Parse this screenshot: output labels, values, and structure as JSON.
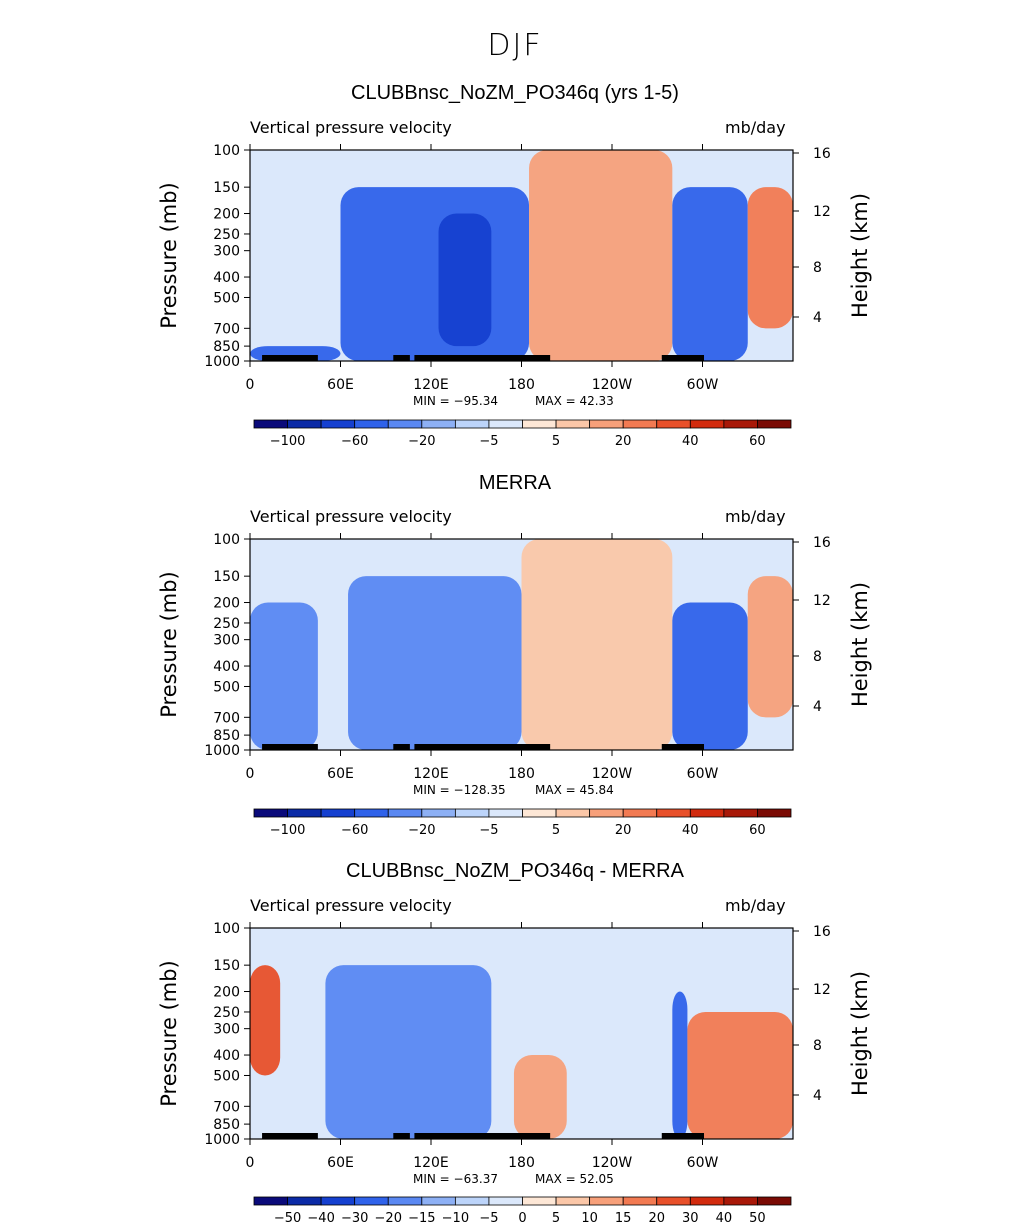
{
  "suptitle": "DJF",
  "chart_data": [
    {
      "type": "heatmap",
      "title": "CLUBBnsc_NoZM_PO346q (yrs 1-5)",
      "left_label": "Vertical pressure velocity",
      "right_label": "mb/day",
      "ylabel": "Pressure (mb)",
      "ylabel_right": "Height (km)",
      "y_ticks": [
        "100",
        "150",
        "200",
        "250",
        "300",
        "400",
        "500",
        "700",
        "850",
        "1000"
      ],
      "y_right_ticks": [
        "16",
        "12",
        "8",
        "4"
      ],
      "x_ticks": [
        "0",
        "60E",
        "120E",
        "180",
        "120W",
        "60W"
      ],
      "min_label": "MIN = −95.34",
      "max_label": "MAX =  42.33",
      "colorbar_ticks": [
        "−100",
        "−60",
        "−20",
        "−5",
        "5",
        "20",
        "40",
        "60"
      ],
      "colorbar_colors": [
        "#0a0a7a",
        "#0a2aa6",
        "#1540d0",
        "#2f62ea",
        "#5a88f2",
        "#8db0f5",
        "#bcd4fa",
        "#dbe8fb",
        "#fde7d6",
        "#fbc7a8",
        "#f7a07a",
        "#f27a52",
        "#e8502a",
        "#d22b0e",
        "#a81808",
        "#7a0a04"
      ],
      "fields": [
        {
          "x0": 0,
          "x1": 60,
          "p0": 850,
          "p1": 1000,
          "color": "#2f62ea"
        },
        {
          "x0": 60,
          "x1": 185,
          "p0": 150,
          "p1": 1000,
          "color": "#2f62ea"
        },
        {
          "x0": 125,
          "x1": 160,
          "p0": 200,
          "p1": 850,
          "color": "#1540d0"
        },
        {
          "x0": 185,
          "x1": 280,
          "p0": 100,
          "p1": 1000,
          "color": "#f7a07a"
        },
        {
          "x0": 280,
          "x1": 330,
          "p0": 150,
          "p1": 1000,
          "color": "#2f62ea"
        },
        {
          "x0": 330,
          "x1": 360,
          "p0": 150,
          "p1": 700,
          "color": "#f27a52"
        }
      ]
    },
    {
      "type": "heatmap",
      "title": "MERRA",
      "left_label": "Vertical pressure velocity",
      "right_label": "mb/day",
      "ylabel": "Pressure (mb)",
      "ylabel_right": "Height (km)",
      "y_ticks": [
        "100",
        "150",
        "200",
        "250",
        "300",
        "400",
        "500",
        "700",
        "850",
        "1000"
      ],
      "y_right_ticks": [
        "16",
        "12",
        "8",
        "4"
      ],
      "x_ticks": [
        "0",
        "60E",
        "120E",
        "180",
        "120W",
        "60W"
      ],
      "min_label": "MIN = −128.35",
      "max_label": "MAX =  45.84",
      "colorbar_ticks": [
        "−100",
        "−60",
        "−20",
        "−5",
        "5",
        "20",
        "40",
        "60"
      ],
      "colorbar_colors": [
        "#0a0a7a",
        "#0a2aa6",
        "#1540d0",
        "#2f62ea",
        "#5a88f2",
        "#8db0f5",
        "#bcd4fa",
        "#dbe8fb",
        "#fde7d6",
        "#fbc7a8",
        "#f7a07a",
        "#f27a52",
        "#e8502a",
        "#d22b0e",
        "#a81808",
        "#7a0a04"
      ],
      "fields": [
        {
          "x0": 0,
          "x1": 45,
          "p0": 200,
          "p1": 1000,
          "color": "#5a88f2"
        },
        {
          "x0": 65,
          "x1": 180,
          "p0": 150,
          "p1": 1000,
          "color": "#5a88f2"
        },
        {
          "x0": 180,
          "x1": 280,
          "p0": 100,
          "p1": 1000,
          "color": "#fbc7a8"
        },
        {
          "x0": 280,
          "x1": 330,
          "p0": 200,
          "p1": 1000,
          "color": "#2f62ea"
        },
        {
          "x0": 330,
          "x1": 360,
          "p0": 150,
          "p1": 700,
          "color": "#f7a07a"
        }
      ]
    },
    {
      "type": "heatmap",
      "title": "CLUBBnsc_NoZM_PO346q - MERRA",
      "left_label": "Vertical pressure velocity",
      "right_label": "mb/day",
      "ylabel": "Pressure (mb)",
      "ylabel_right": "Height (km)",
      "y_ticks": [
        "100",
        "150",
        "200",
        "250",
        "300",
        "400",
        "500",
        "700",
        "850",
        "1000"
      ],
      "y_right_ticks": [
        "16",
        "12",
        "8",
        "4"
      ],
      "x_ticks": [
        "0",
        "60E",
        "120E",
        "180",
        "120W",
        "60W"
      ],
      "min_label": "MIN = −63.37",
      "max_label": "MAX =  52.05",
      "colorbar_ticks": [
        "−50",
        "−40",
        "−30",
        "−20",
        "−15",
        "−10",
        "−5",
        "0",
        "5",
        "10",
        "15",
        "20",
        "30",
        "40",
        "50"
      ],
      "colorbar_colors": [
        "#0a0a7a",
        "#0a2aa6",
        "#1540d0",
        "#2f62ea",
        "#5a88f2",
        "#8db0f5",
        "#bcd4fa",
        "#dbe8fb",
        "#fde7d6",
        "#fbc7a8",
        "#f7a07a",
        "#f27a52",
        "#e8502a",
        "#d22b0e",
        "#a81808",
        "#7a0a04"
      ],
      "fields": [
        {
          "x0": 0,
          "x1": 20,
          "p0": 150,
          "p1": 500,
          "color": "#e8502a"
        },
        {
          "x0": 50,
          "x1": 160,
          "p0": 150,
          "p1": 1000,
          "color": "#5a88f2"
        },
        {
          "x0": 175,
          "x1": 210,
          "p0": 400,
          "p1": 1000,
          "color": "#f7a07a"
        },
        {
          "x0": 280,
          "x1": 290,
          "p0": 200,
          "p1": 1000,
          "color": "#2f62ea"
        },
        {
          "x0": 290,
          "x1": 360,
          "p0": 250,
          "p1": 1000,
          "color": "#f27a52"
        }
      ]
    }
  ]
}
